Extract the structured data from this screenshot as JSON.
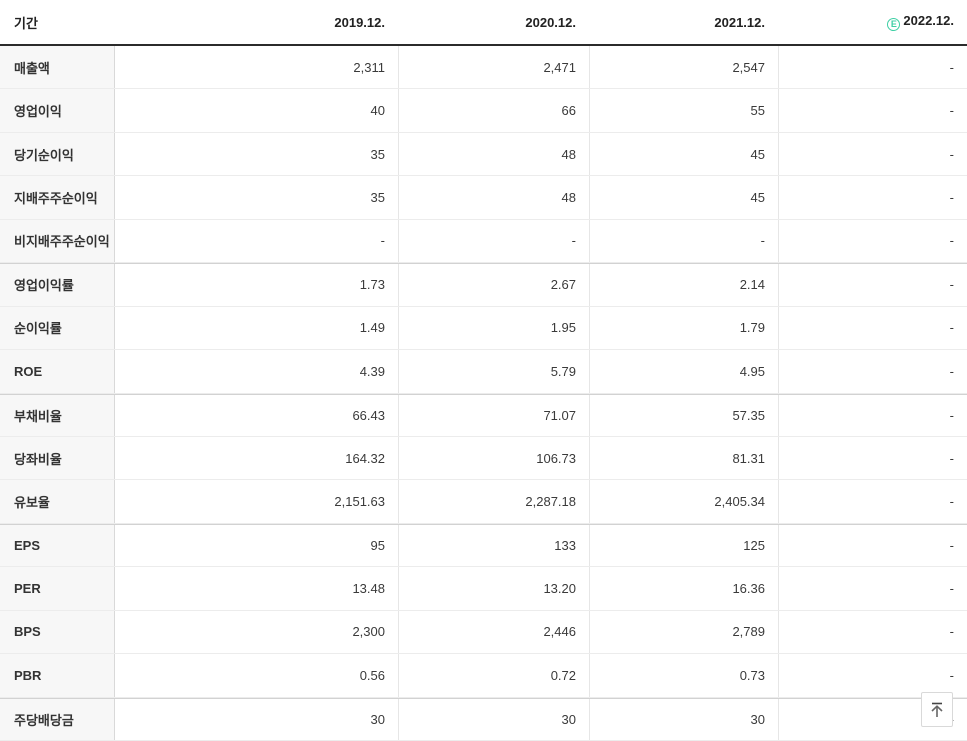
{
  "table": {
    "header": {
      "period_label": "기간",
      "col1": "2019.12.",
      "col2": "2020.12.",
      "col3": "2021.12.",
      "col4": "2022.12.",
      "estimate_badge": "E"
    },
    "rows": [
      {
        "label": "매출액",
        "values": [
          "2,311",
          "2,471",
          "2,547",
          "-"
        ],
        "group_start": false
      },
      {
        "label": "영업이익",
        "values": [
          "40",
          "66",
          "55",
          "-"
        ],
        "group_start": false
      },
      {
        "label": "당기순이익",
        "values": [
          "35",
          "48",
          "45",
          "-"
        ],
        "group_start": false
      },
      {
        "label": "지배주주순이익",
        "values": [
          "35",
          "48",
          "45",
          "-"
        ],
        "group_start": false
      },
      {
        "label": "비지배주주순이익",
        "values": [
          "-",
          "-",
          "-",
          "-"
        ],
        "group_start": false
      },
      {
        "label": "영업이익률",
        "values": [
          "1.73",
          "2.67",
          "2.14",
          "-"
        ],
        "group_start": true
      },
      {
        "label": "순이익률",
        "values": [
          "1.49",
          "1.95",
          "1.79",
          "-"
        ],
        "group_start": false
      },
      {
        "label": "ROE",
        "values": [
          "4.39",
          "5.79",
          "4.95",
          "-"
        ],
        "group_start": false
      },
      {
        "label": "부채비율",
        "values": [
          "66.43",
          "71.07",
          "57.35",
          "-"
        ],
        "group_start": true
      },
      {
        "label": "당좌비율",
        "values": [
          "164.32",
          "106.73",
          "81.31",
          "-"
        ],
        "group_start": false
      },
      {
        "label": "유보율",
        "values": [
          "2,151.63",
          "2,287.18",
          "2,405.34",
          "-"
        ],
        "group_start": false
      },
      {
        "label": "EPS",
        "values": [
          "95",
          "133",
          "125",
          "-"
        ],
        "group_start": true
      },
      {
        "label": "PER",
        "values": [
          "13.48",
          "13.20",
          "16.36",
          "-"
        ],
        "group_start": false
      },
      {
        "label": "BPS",
        "values": [
          "2,300",
          "2,446",
          "2,789",
          "-"
        ],
        "group_start": false
      },
      {
        "label": "PBR",
        "values": [
          "0.56",
          "0.72",
          "0.73",
          "-"
        ],
        "group_start": false
      },
      {
        "label": "주당배당금",
        "values": [
          "30",
          "30",
          "30",
          "-"
        ],
        "group_start": true
      }
    ]
  },
  "colors": {
    "estimate_badge": "#3ecfa4",
    "header_border": "#2b2b2b",
    "label_column_bg": "#f7f7f7",
    "row_separator": "#ececec",
    "group_separator": "#d2d2d2"
  },
  "scroll_top_button": {
    "icon": "arrow-up-to-top"
  }
}
